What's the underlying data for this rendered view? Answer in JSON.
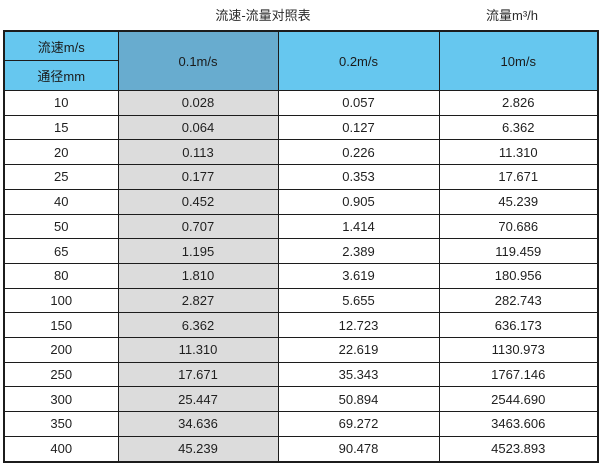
{
  "page": {
    "title": "流速-流量对照表",
    "unit_label": "流量m³/h"
  },
  "table": {
    "header": {
      "corner_top": "流速m/s",
      "corner_bottom": "通径mm",
      "velocity_columns": [
        "0.1m/s",
        "0.2m/s",
        "10m/s"
      ]
    },
    "rows": [
      {
        "dn": "10",
        "values": [
          "0.028",
          "0.057",
          "2.826"
        ]
      },
      {
        "dn": "15",
        "values": [
          "0.064",
          "0.127",
          "6.362"
        ]
      },
      {
        "dn": "20",
        "values": [
          "0.113",
          "0.226",
          "11.310"
        ]
      },
      {
        "dn": "25",
        "values": [
          "0.177",
          "0.353",
          "17.671"
        ]
      },
      {
        "dn": "40",
        "values": [
          "0.452",
          "0.905",
          "45.239"
        ]
      },
      {
        "dn": "50",
        "values": [
          "0.707",
          "1.414",
          "70.686"
        ]
      },
      {
        "dn": "65",
        "values": [
          "1.195",
          "2.389",
          "119.459"
        ]
      },
      {
        "dn": "80",
        "values": [
          "1.810",
          "3.619",
          "180.956"
        ]
      },
      {
        "dn": "100",
        "values": [
          "2.827",
          "5.655",
          "282.743"
        ]
      },
      {
        "dn": "150",
        "values": [
          "6.362",
          "12.723",
          "636.173"
        ]
      },
      {
        "dn": "200",
        "values": [
          "11.310",
          "22.619",
          "1130.973"
        ]
      },
      {
        "dn": "250",
        "values": [
          "17.671",
          "35.343",
          "1767.146"
        ]
      },
      {
        "dn": "300",
        "values": [
          "25.447",
          "50.894",
          "2544.690"
        ]
      },
      {
        "dn": "350",
        "values": [
          "34.636",
          "69.272",
          "3463.606"
        ]
      },
      {
        "dn": "400",
        "values": [
          "45.239",
          "90.478",
          "4523.893"
        ]
      }
    ],
    "colors": {
      "header_light_blue": "#66c7ef",
      "header_medium_blue": "#68accf",
      "highlight_column_gray": "#dcdcdc",
      "border": "#1c1c1c"
    }
  }
}
